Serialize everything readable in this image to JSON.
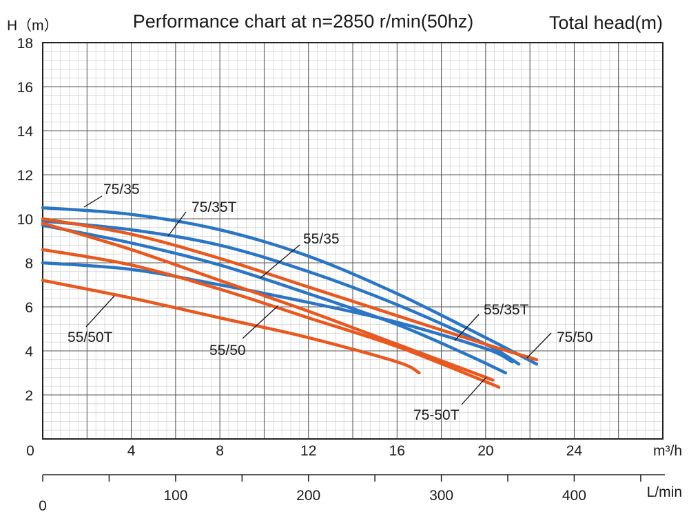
{
  "chart_data": {
    "type": "line",
    "title": "Performance chart at n=2850 r/min(50hz)",
    "y_title_left": "H（m）",
    "y_title_right": "Total head(m)",
    "x_unit": "m³/h",
    "x2_unit": "L/min",
    "x_origin_label": "0",
    "x2_origin_label": "0",
    "xlim": [
      0,
      28
    ],
    "ylim": [
      0,
      18
    ],
    "x_ticks": [
      {
        "value": 4,
        "label": "4"
      },
      {
        "value": 8,
        "label": "8"
      },
      {
        "value": 12,
        "label": "12"
      },
      {
        "value": 16,
        "label": "16"
      },
      {
        "value": 20,
        "label": "20"
      },
      {
        "value": 24,
        "label": "24"
      }
    ],
    "y_ticks": [
      {
        "value": 2,
        "label": "2"
      },
      {
        "value": 4,
        "label": "4"
      },
      {
        "value": 6,
        "label": "6"
      },
      {
        "value": 8,
        "label": "8"
      },
      {
        "value": 10,
        "label": "10"
      },
      {
        "value": 12,
        "label": "12"
      },
      {
        "value": 14,
        "label": "14"
      },
      {
        "value": 16,
        "label": "16"
      },
      {
        "value": 18,
        "label": "18"
      }
    ],
    "x2_ticks": [
      {
        "value": 100,
        "label": "100"
      },
      {
        "value": 200,
        "label": "200"
      },
      {
        "value": 300,
        "label": "300"
      },
      {
        "value": 400,
        "label": "400"
      }
    ],
    "grid": true,
    "series": [
      {
        "name": "75/35",
        "color": "#2b76c4",
        "x": [
          0,
          4,
          8,
          12,
          16,
          20,
          22.3
        ],
        "y": [
          10.5,
          10.2,
          9.5,
          8.3,
          6.6,
          4.6,
          3.4
        ]
      },
      {
        "name": "75/35T",
        "color": "#2b76c4",
        "x": [
          0,
          4,
          8,
          12,
          16,
          20,
          21.5
        ],
        "y": [
          9.9,
          9.5,
          8.8,
          7.6,
          6.1,
          4.3,
          3.4
        ]
      },
      {
        "name": "55/35",
        "color": "#2b76c4",
        "x": [
          0,
          4,
          8,
          12,
          16,
          19,
          20.9
        ],
        "y": [
          9.7,
          8.9,
          7.9,
          6.6,
          5.2,
          3.9,
          3.0
        ]
      },
      {
        "name": "55/35T",
        "color": "#2b76c4",
        "x": [
          0,
          4,
          8,
          12,
          16,
          20,
          21.2
        ],
        "y": [
          8.0,
          7.7,
          7.0,
          6.2,
          5.3,
          4.1,
          3.5
        ]
      },
      {
        "name": "75/50",
        "color": "#e8581f",
        "x": [
          0,
          4,
          8,
          12,
          16,
          20,
          22.3
        ],
        "y": [
          10.0,
          9.3,
          8.2,
          6.9,
          5.6,
          4.3,
          3.6
        ]
      },
      {
        "name": "55/50",
        "color": "#e8581f",
        "x": [
          0,
          4,
          8,
          12,
          16,
          20,
          20.1
        ],
        "y": [
          9.8,
          8.6,
          7.2,
          5.8,
          4.3,
          2.8,
          2.75
        ]
      },
      {
        "name": "75-50T",
        "color": "#e8581f",
        "x": [
          0,
          4,
          8,
          12,
          16,
          20,
          20.6
        ],
        "y": [
          8.6,
          7.9,
          6.8,
          5.5,
          4.2,
          2.6,
          2.35
        ]
      },
      {
        "name": "55/50T",
        "color": "#e8581f",
        "x": [
          0,
          4,
          8,
          12,
          16,
          17
        ],
        "y": [
          7.2,
          6.4,
          5.5,
          4.6,
          3.5,
          3.0
        ]
      }
    ]
  }
}
